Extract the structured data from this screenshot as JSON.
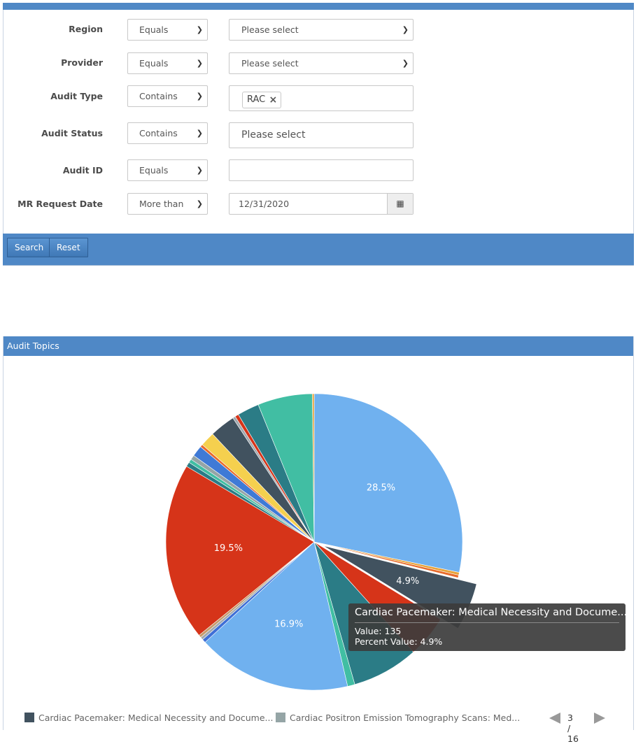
{
  "filters": [
    {
      "label": "Region",
      "operator": "Equals",
      "value": "Please select",
      "value_type": "select"
    },
    {
      "label": "Provider",
      "operator": "Equals",
      "value": "Please select",
      "value_type": "select"
    },
    {
      "label": "Audit Type",
      "operator": "Contains",
      "chip": "RAC",
      "value_type": "multiselect"
    },
    {
      "label": "Audit Status",
      "operator": "Contains",
      "placeholder": "Please select",
      "value_type": "multiselect"
    },
    {
      "label": "Audit ID",
      "operator": "Equals",
      "value": "",
      "value_type": "text"
    },
    {
      "label": "MR Request Date",
      "operator": "More than",
      "value": "12/31/2020",
      "value_type": "date"
    }
  ],
  "actions": {
    "search_label": "Search",
    "reset_label": "Reset"
  },
  "chart_panel": {
    "title": "Audit Topics"
  },
  "chart_data": {
    "type": "pie",
    "slices": [
      {
        "percent": 28.5,
        "label": "28.5%",
        "color": "#70b1ef"
      },
      {
        "percent": 0.3,
        "label": "",
        "color": "#e8a33a"
      },
      {
        "percent": 0.3,
        "label": "",
        "color": "#e86a2a"
      },
      {
        "percent": 4.9,
        "label": "4.9%",
        "color": "#41525f",
        "exploded": true
      },
      {
        "percent": 4.6,
        "label": "",
        "color": "#d63419"
      },
      {
        "percent": 7.3,
        "label": "",
        "color": "#2b7c86"
      },
      {
        "percent": 0.8,
        "label": "",
        "color": "#41bea3"
      },
      {
        "percent": 16.9,
        "label": "16.9%",
        "color": "#70b1ef"
      },
      {
        "percent": 0.4,
        "label": "",
        "color": "#3f6fd6"
      },
      {
        "percent": 0.3,
        "label": "",
        "color": "#a0a8ae"
      },
      {
        "percent": 0.3,
        "label": "",
        "color": "#c69a6a"
      },
      {
        "percent": 19.5,
        "label": "19.5%",
        "color": "#d63419"
      },
      {
        "percent": 0.5,
        "label": "",
        "color": "#2b7c86"
      },
      {
        "percent": 0.4,
        "label": "",
        "color": "#41bea3"
      },
      {
        "percent": 0.5,
        "label": "",
        "color": "#95a5a6"
      },
      {
        "percent": 1.2,
        "label": "",
        "color": "#3f7ad6"
      },
      {
        "percent": 0.3,
        "label": "",
        "color": "#e86a2a"
      },
      {
        "percent": 1.6,
        "label": "",
        "color": "#f5d04e"
      },
      {
        "percent": 2.8,
        "label": "",
        "color": "#41525f"
      },
      {
        "percent": 0.3,
        "label": "",
        "color": "#a0a8ae"
      },
      {
        "percent": 0.4,
        "label": "",
        "color": "#d63419"
      },
      {
        "percent": 2.4,
        "label": "",
        "color": "#2b7c86"
      },
      {
        "percent": 6.0,
        "label": "",
        "color": "#41bea3"
      },
      {
        "percent": 0.2,
        "label": "",
        "color": "#e8a33a"
      }
    ],
    "tooltip": {
      "title": "Cardiac Pacemaker: Medical Necessity and Docume...",
      "value_label": "Value: 135",
      "percent_label": "Percent Value: 4.9%"
    },
    "legend": [
      {
        "name": "Cardiac Pacemaker: Medical Necessity and Docume...",
        "color": "#41525f"
      },
      {
        "name": "Cardiac Positron Emission Tomography Scans: Med...",
        "color": "#95a5a6"
      }
    ],
    "legend_page": "3 / 16"
  }
}
